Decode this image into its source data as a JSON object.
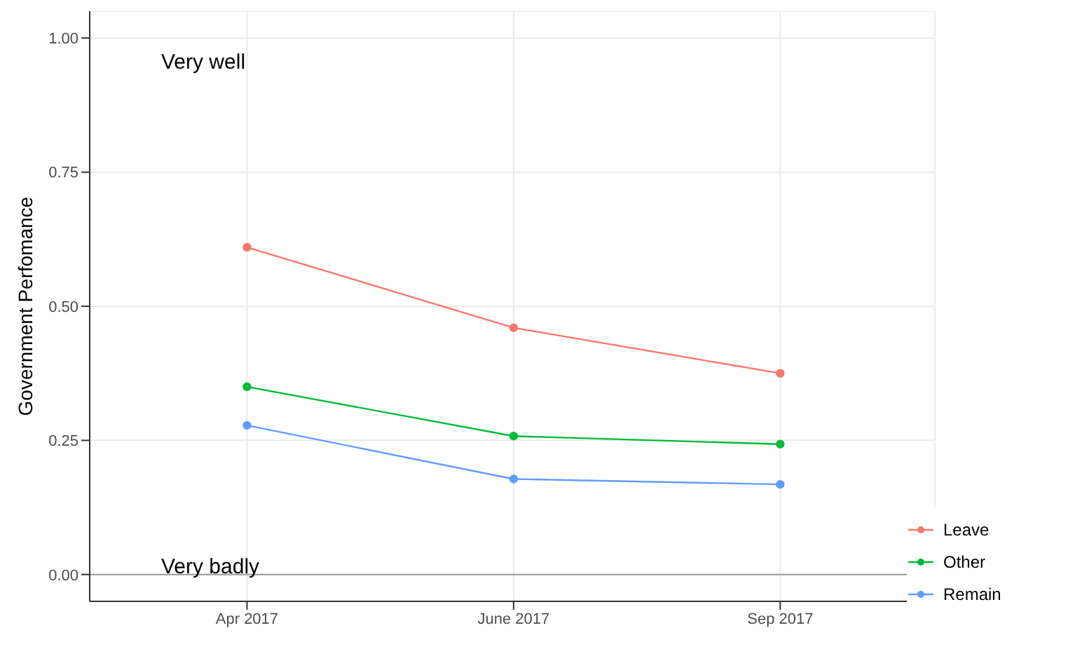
{
  "chart_data": {
    "type": "line",
    "ylabel": "Government Perfomance",
    "categories": [
      "Apr 2017",
      "June 2017",
      "Sep 2017"
    ],
    "series": [
      {
        "name": "Leave",
        "color": "#f8766d",
        "values": [
          0.61,
          0.46,
          0.375
        ]
      },
      {
        "name": "Other",
        "color": "#00ba38",
        "values": [
          0.35,
          0.258,
          0.243
        ]
      },
      {
        "name": "Remain",
        "color": "#619cff",
        "values": [
          0.278,
          0.178,
          0.168
        ]
      }
    ],
    "ylim": [
      -0.05,
      1.05
    ],
    "yticks": [
      {
        "value": 0,
        "label": "0.00"
      },
      {
        "value": 0.25,
        "label": "0.25"
      },
      {
        "value": 0.5,
        "label": "0.50"
      },
      {
        "value": 0.75,
        "label": "0.75"
      },
      {
        "value": 1,
        "label": "1.00"
      }
    ],
    "ref_lines": [
      {
        "axis": "y",
        "value": 0,
        "color": "#999999"
      }
    ],
    "annotations": [
      "Very well",
      "Very badly"
    ],
    "grid": true,
    "legend": "bottom right",
    "marker": "circle",
    "line_style": "solid"
  }
}
